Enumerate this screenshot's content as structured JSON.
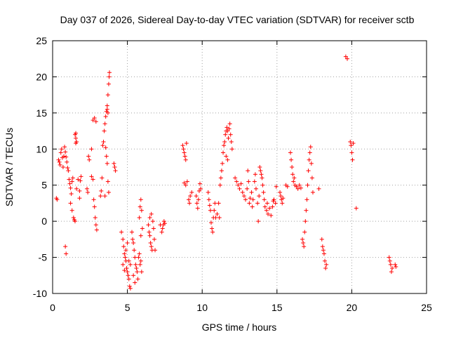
{
  "chart_data": {
    "type": "scatter",
    "title": "Day 037 of 2026, Sidereal Day-to-day VTEC variation (SDTVAR) for receiver sctb",
    "xlabel": "GPS time / hours",
    "ylabel": "SDTVAR / TECUs",
    "xlim": [
      0,
      25
    ],
    "ylim": [
      -10,
      25
    ],
    "xticks": [
      0,
      5,
      10,
      15,
      20,
      25
    ],
    "yticks": [
      -10,
      -5,
      0,
      5,
      10,
      15,
      20,
      25
    ],
    "xtick_labels": [
      "0",
      "5",
      "10",
      "15",
      "20",
      "25"
    ],
    "ytick_labels": [
      "-10",
      "-5",
      "0",
      "5",
      "10",
      "15",
      "20",
      "25"
    ],
    "grid": true,
    "marker": "plus",
    "color": "#ff0000",
    "series": [
      {
        "name": "SDTVAR",
        "points": [
          [
            0.25,
            3.2
          ],
          [
            0.3,
            3.0
          ],
          [
            0.4,
            8.5
          ],
          [
            0.45,
            8.2
          ],
          [
            0.5,
            7.8
          ],
          [
            0.55,
            9.5
          ],
          [
            0.6,
            10.0
          ],
          [
            0.65,
            8.8
          ],
          [
            0.7,
            7.5
          ],
          [
            0.75,
            9.0
          ],
          [
            0.8,
            10.3
          ],
          [
            0.85,
            9.6
          ],
          [
            0.9,
            8.9
          ],
          [
            0.95,
            8.2
          ],
          [
            1.0,
            7.4
          ],
          [
            1.05,
            7.0
          ],
          [
            0.85,
            -3.5
          ],
          [
            0.9,
            -4.5
          ],
          [
            1.1,
            5.8
          ],
          [
            1.15,
            5.2
          ],
          [
            1.2,
            4.6
          ],
          [
            1.25,
            3.8
          ],
          [
            1.3,
            5.5
          ],
          [
            1.35,
            6.0
          ],
          [
            1.2,
            2.5
          ],
          [
            1.3,
            1.5
          ],
          [
            1.4,
            0.5
          ],
          [
            1.45,
            0.2
          ],
          [
            1.5,
            0.0
          ],
          [
            1.5,
            12.0
          ],
          [
            1.55,
            11.5
          ],
          [
            1.6,
            11.0
          ],
          [
            1.55,
            10.8
          ],
          [
            1.55,
            12.2
          ],
          [
            1.6,
            4.5
          ],
          [
            1.7,
            5.8
          ],
          [
            1.8,
            4.2
          ],
          [
            1.8,
            3.2
          ],
          [
            1.85,
            5.6
          ],
          [
            1.9,
            6.2
          ],
          [
            2.3,
            4.5
          ],
          [
            2.35,
            4.0
          ],
          [
            2.4,
            9.0
          ],
          [
            2.45,
            8.5
          ],
          [
            2.6,
            10.0
          ],
          [
            2.6,
            6.2
          ],
          [
            2.7,
            5.8
          ],
          [
            2.75,
            3.0
          ],
          [
            2.8,
            2.0
          ],
          [
            2.85,
            0.5
          ],
          [
            2.9,
            -0.5
          ],
          [
            2.95,
            -1.2
          ],
          [
            2.7,
            14.0
          ],
          [
            2.8,
            14.3
          ],
          [
            2.9,
            13.8
          ],
          [
            3.2,
            3.5
          ],
          [
            3.25,
            4.2
          ],
          [
            3.3,
            6.0
          ],
          [
            3.35,
            10.5
          ],
          [
            3.4,
            11.0
          ],
          [
            3.45,
            12.5
          ],
          [
            3.5,
            13.5
          ],
          [
            3.55,
            14.5
          ],
          [
            3.6,
            15.2
          ],
          [
            3.65,
            16.0
          ],
          [
            3.7,
            17.5
          ],
          [
            3.75,
            19.0
          ],
          [
            3.78,
            20.0
          ],
          [
            3.8,
            20.6
          ],
          [
            3.65,
            15.5
          ],
          [
            3.7,
            15.0
          ],
          [
            3.55,
            10.2
          ],
          [
            3.6,
            9.0
          ],
          [
            3.65,
            8.0
          ],
          [
            3.7,
            5.5
          ],
          [
            3.75,
            4.0
          ],
          [
            3.5,
            3.5
          ],
          [
            4.1,
            8.0
          ],
          [
            4.15,
            7.5
          ],
          [
            4.2,
            7.0
          ],
          [
            4.6,
            -1.5
          ],
          [
            4.7,
            -2.5
          ],
          [
            4.75,
            -3.5
          ],
          [
            4.8,
            -4.5
          ],
          [
            4.85,
            -5.0
          ],
          [
            4.9,
            -5.5
          ],
          [
            4.95,
            -6.5
          ],
          [
            5.0,
            -7.0
          ],
          [
            5.05,
            -7.5
          ],
          [
            5.1,
            -8.0
          ],
          [
            5.15,
            -9.0
          ],
          [
            5.2,
            -9.3
          ],
          [
            4.7,
            -6.0
          ],
          [
            4.8,
            -6.8
          ],
          [
            4.9,
            -4.0
          ],
          [
            5.0,
            -3.0
          ],
          [
            5.1,
            -5.5
          ],
          [
            5.2,
            -6.0
          ],
          [
            5.3,
            -1.5
          ],
          [
            5.35,
            -2.5
          ],
          [
            5.4,
            -3.0
          ],
          [
            5.45,
            -4.0
          ],
          [
            5.5,
            -5.0
          ],
          [
            5.55,
            -6.0
          ],
          [
            5.6,
            -6.5
          ],
          [
            5.65,
            -7.0
          ],
          [
            5.7,
            -8.0
          ],
          [
            5.75,
            -5.0
          ],
          [
            5.8,
            -4.5
          ],
          [
            5.85,
            -6.0
          ],
          [
            5.9,
            -5.5
          ],
          [
            5.95,
            -7.0
          ],
          [
            5.5,
            -8.5
          ],
          [
            5.4,
            -7.5
          ],
          [
            5.8,
            0.5
          ],
          [
            5.85,
            2.0
          ],
          [
            5.9,
            3.0
          ],
          [
            5.95,
            1.5
          ],
          [
            6.0,
            -1.0
          ],
          [
            5.9,
            -2.0
          ],
          [
            6.4,
            -0.5
          ],
          [
            6.45,
            -1.5
          ],
          [
            6.5,
            -2.0
          ],
          [
            6.55,
            -3.0
          ],
          [
            6.6,
            -3.5
          ],
          [
            6.65,
            -4.0
          ],
          [
            6.5,
            0.5
          ],
          [
            6.6,
            1.0
          ],
          [
            6.7,
            0.0
          ],
          [
            6.75,
            -1.0
          ],
          [
            6.8,
            -2.5
          ],
          [
            6.85,
            -4.0
          ],
          [
            7.2,
            -0.5
          ],
          [
            7.3,
            -1.5
          ],
          [
            7.35,
            -1.0
          ],
          [
            7.4,
            -0.5
          ],
          [
            7.45,
            0.0
          ],
          [
            7.5,
            -0.3
          ],
          [
            8.7,
            10.5
          ],
          [
            8.75,
            10.0
          ],
          [
            8.8,
            9.5
          ],
          [
            8.85,
            9.0
          ],
          [
            8.9,
            8.5
          ],
          [
            8.95,
            10.8
          ],
          [
            8.8,
            5.3
          ],
          [
            8.9,
            5.0
          ],
          [
            9.0,
            5.5
          ],
          [
            9.1,
            3.0
          ],
          [
            9.15,
            2.5
          ],
          [
            9.2,
            3.5
          ],
          [
            9.3,
            4.0
          ],
          [
            9.6,
            3.5
          ],
          [
            9.65,
            2.5
          ],
          [
            9.7,
            1.8
          ],
          [
            9.75,
            3.0
          ],
          [
            9.8,
            4.2
          ],
          [
            9.85,
            5.2
          ],
          [
            9.9,
            4.5
          ],
          [
            10.4,
            4.0
          ],
          [
            10.45,
            3.0
          ],
          [
            10.5,
            2.2
          ],
          [
            10.55,
            1.5
          ],
          [
            10.6,
            -0.2
          ],
          [
            10.65,
            -1.0
          ],
          [
            10.7,
            -1.5
          ],
          [
            10.75,
            0.5
          ],
          [
            10.8,
            1.5
          ],
          [
            10.85,
            2.5
          ],
          [
            10.9,
            0.5
          ],
          [
            11.0,
            1.0
          ],
          [
            11.1,
            2.5
          ],
          [
            11.15,
            0.5
          ],
          [
            11.2,
            5.0
          ],
          [
            11.25,
            6.0
          ],
          [
            11.3,
            7.0
          ],
          [
            11.35,
            8.0
          ],
          [
            11.4,
            9.5
          ],
          [
            11.45,
            10.5
          ],
          [
            11.5,
            11.0
          ],
          [
            11.55,
            12.0
          ],
          [
            11.6,
            12.5
          ],
          [
            11.65,
            13.0
          ],
          [
            11.7,
            12.5
          ],
          [
            11.75,
            11.5
          ],
          [
            11.8,
            12.8
          ],
          [
            11.85,
            13.5
          ],
          [
            11.9,
            12.0
          ],
          [
            11.95,
            11.0
          ],
          [
            12.0,
            10.0
          ],
          [
            11.6,
            9.0
          ],
          [
            11.7,
            8.5
          ],
          [
            12.2,
            6.0
          ],
          [
            12.3,
            5.5
          ],
          [
            12.4,
            5.0
          ],
          [
            12.5,
            4.5
          ],
          [
            12.6,
            5.2
          ],
          [
            12.7,
            4.0
          ],
          [
            12.8,
            3.5
          ],
          [
            12.9,
            3.0
          ],
          [
            13.0,
            4.5
          ],
          [
            13.05,
            7.0
          ],
          [
            13.1,
            5.5
          ],
          [
            13.15,
            2.5
          ],
          [
            13.2,
            3.2
          ],
          [
            13.3,
            4.0
          ],
          [
            13.35,
            2.0
          ],
          [
            13.4,
            3.0
          ],
          [
            13.5,
            5.5
          ],
          [
            13.55,
            6.5
          ],
          [
            13.6,
            4.5
          ],
          [
            13.7,
            2.5
          ],
          [
            13.75,
            0.0
          ],
          [
            13.8,
            3.5
          ],
          [
            13.85,
            7.5
          ],
          [
            13.9,
            7.0
          ],
          [
            13.95,
            6.5
          ],
          [
            14.0,
            6.0
          ],
          [
            14.05,
            5.0
          ],
          [
            14.1,
            4.0
          ],
          [
            14.15,
            3.0
          ],
          [
            14.2,
            2.0
          ],
          [
            14.3,
            1.5
          ],
          [
            14.35,
            2.5
          ],
          [
            14.4,
            1.0
          ],
          [
            14.5,
            1.8
          ],
          [
            14.6,
            0.8
          ],
          [
            14.7,
            2.0
          ],
          [
            14.75,
            2.8
          ],
          [
            14.8,
            3.0
          ],
          [
            14.9,
            2.5
          ],
          [
            14.95,
            4.8
          ],
          [
            15.2,
            4.0
          ],
          [
            15.25,
            3.5
          ],
          [
            15.3,
            3.0
          ],
          [
            15.35,
            2.5
          ],
          [
            15.4,
            3.2
          ],
          [
            15.6,
            5.0
          ],
          [
            15.7,
            4.8
          ],
          [
            15.9,
            9.5
          ],
          [
            15.95,
            8.5
          ],
          [
            16.0,
            7.5
          ],
          [
            16.05,
            6.5
          ],
          [
            16.1,
            5.5
          ],
          [
            16.15,
            6.0
          ],
          [
            16.2,
            5.0
          ],
          [
            16.3,
            4.8
          ],
          [
            16.4,
            4.5
          ],
          [
            16.5,
            5.0
          ],
          [
            16.6,
            4.6
          ],
          [
            16.7,
            -2.5
          ],
          [
            16.75,
            -3.0
          ],
          [
            16.8,
            -3.5
          ],
          [
            16.85,
            -1.5
          ],
          [
            16.9,
            0.0
          ],
          [
            16.95,
            1.5
          ],
          [
            17.0,
            3.0
          ],
          [
            17.05,
            5.0
          ],
          [
            17.1,
            7.0
          ],
          [
            17.15,
            8.5
          ],
          [
            17.2,
            9.5
          ],
          [
            17.25,
            10.3
          ],
          [
            17.3,
            8.0
          ],
          [
            17.35,
            6.0
          ],
          [
            17.4,
            4.0
          ],
          [
            17.8,
            4.5
          ],
          [
            18.0,
            -2.5
          ],
          [
            18.05,
            -3.5
          ],
          [
            18.1,
            -4.0
          ],
          [
            18.15,
            -4.5
          ],
          [
            18.2,
            -5.5
          ],
          [
            18.25,
            -6.5
          ],
          [
            18.3,
            -6.0
          ],
          [
            19.6,
            22.8
          ],
          [
            19.7,
            22.5
          ],
          [
            19.9,
            11.0
          ],
          [
            19.95,
            10.5
          ],
          [
            20.0,
            9.5
          ],
          [
            20.05,
            8.5
          ],
          [
            20.1,
            10.8
          ],
          [
            20.3,
            1.8
          ],
          [
            22.5,
            -5.0
          ],
          [
            22.55,
            -5.5
          ],
          [
            22.6,
            -6.0
          ],
          [
            22.65,
            -7.0
          ],
          [
            22.7,
            -6.5
          ],
          [
            22.9,
            -6.0
          ],
          [
            22.95,
            -6.3
          ]
        ]
      }
    ]
  }
}
